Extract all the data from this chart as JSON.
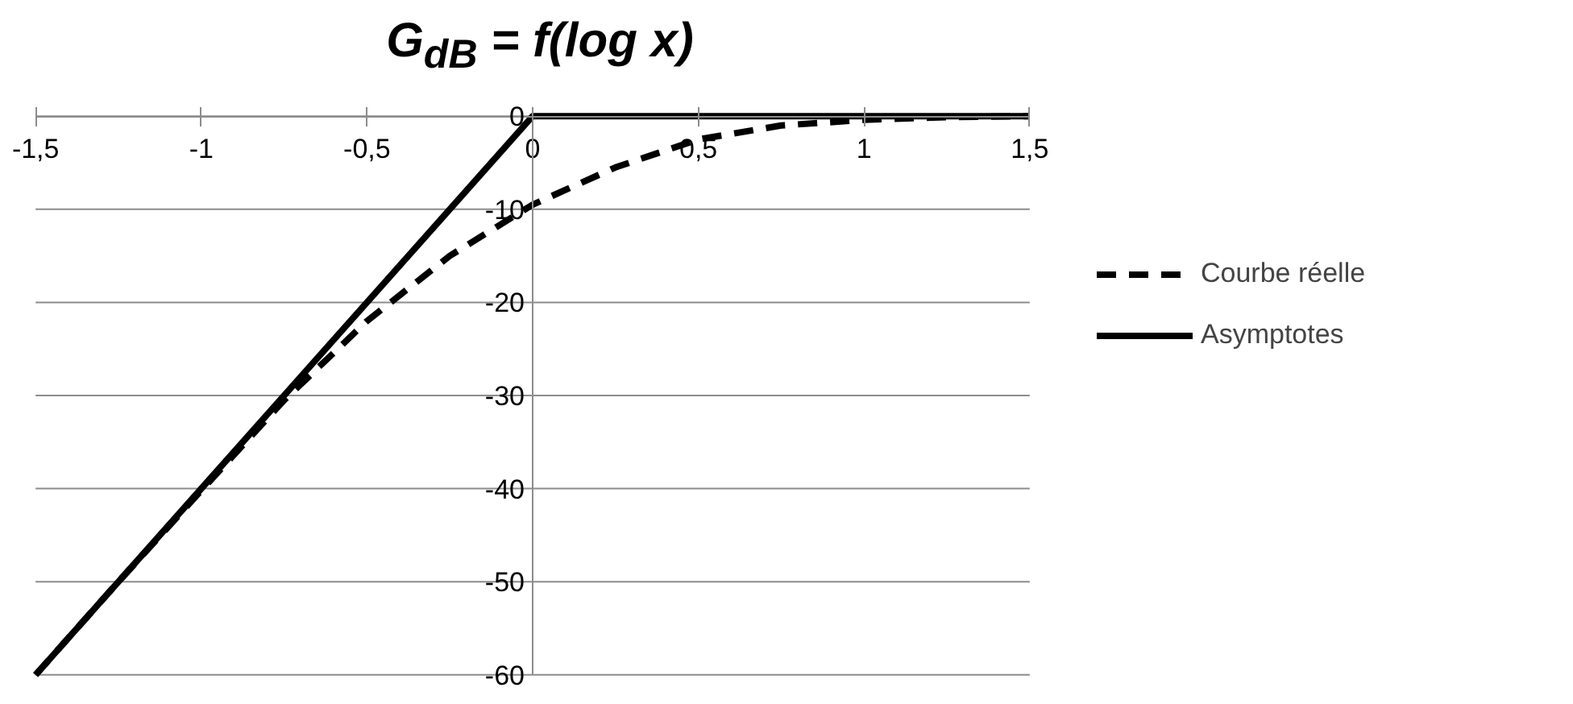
{
  "chart_data": {
    "type": "line",
    "title": "G$_{dB}$ = f(log x)",
    "xlim": [
      -1.5,
      1.5
    ],
    "xticks": [
      {
        "value": -1.5,
        "label": "-1,5"
      },
      -1,
      {
        "value": -0.5,
        "label": "-0,5"
      },
      0,
      {
        "value": 0.5,
        "label": "0,5"
      },
      1,
      {
        "value": 1.5,
        "label": "1,5"
      }
    ],
    "ylim": [
      -60,
      0
    ],
    "yticks": [
      -60,
      -50,
      -40,
      -30,
      -20,
      -10,
      0
    ],
    "grid": "y",
    "legend": "right",
    "marker": "none",
    "series": [
      {
        "name": "Courbe réelle",
        "color": "#000000",
        "line_style": "dashed",
        "x": [
          -1.5,
          -1.25,
          -1,
          -0.75,
          -0.5,
          -0.25,
          0,
          0.25,
          0.5,
          0.75,
          1,
          1.25,
          1.5
        ],
        "values": [
          -60,
          -50,
          -40.2,
          -30.5,
          -22,
          -15,
          -9.5,
          -5.5,
          -2.5,
          -1,
          -0.4,
          -0.1,
          0
        ]
      },
      {
        "name": "Asymptotes",
        "color": "#000000",
        "line_style": "solid",
        "x": [
          -1.5,
          0,
          1.5
        ],
        "values": [
          -60,
          0,
          0
        ]
      }
    ]
  }
}
